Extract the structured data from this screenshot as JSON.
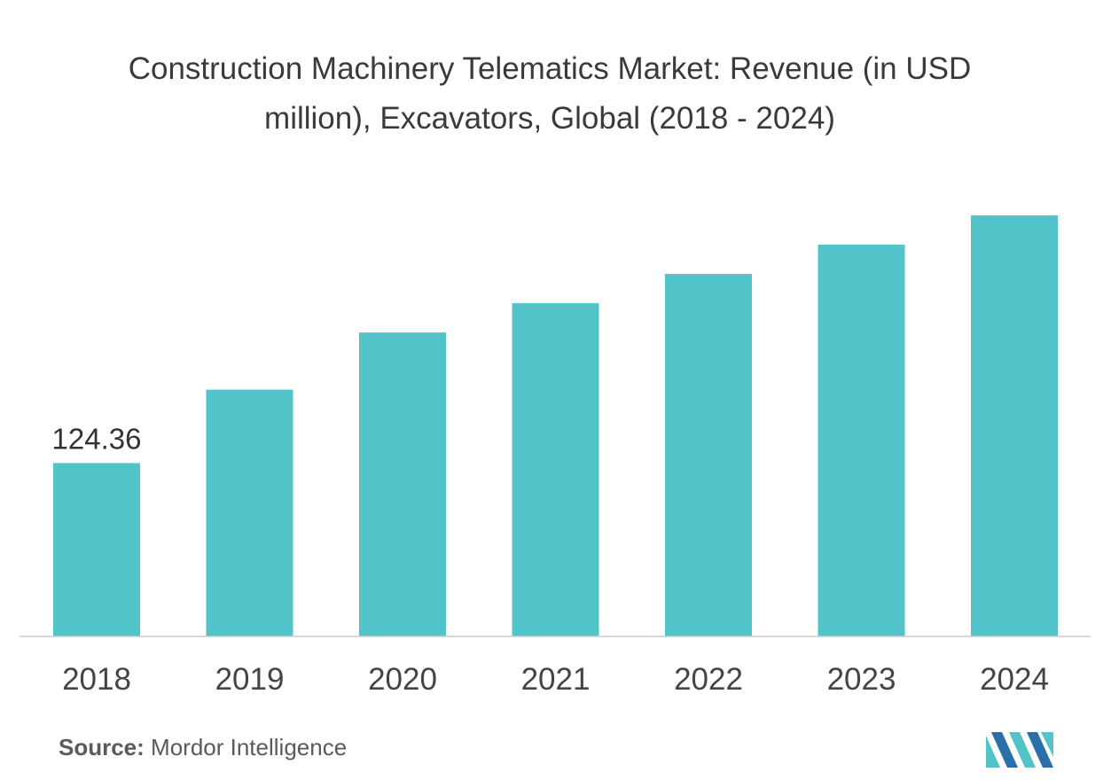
{
  "chart_data": {
    "type": "bar",
    "title": "Construction Machinery Telematics Market: Revenue (in USD million), Excavators, Global (2018 - 2024)",
    "categories": [
      "2018",
      "2019",
      "2020",
      "2021",
      "2022",
      "2023",
      "2024"
    ],
    "values": [
      124.36,
      177,
      218,
      239,
      260,
      281,
      302
    ],
    "data_labels": [
      "124.36",
      "",
      "",
      "",
      "",
      "",
      ""
    ],
    "xlabel": "",
    "ylabel": "",
    "ylim": [
      0,
      302
    ],
    "grid": false,
    "legend": "none",
    "bar_color": "#52c3c9",
    "baseline_color": "#cccccc"
  },
  "source": {
    "label": "Source:",
    "text": "Mordor Intelligence"
  },
  "logo": {
    "icon": "mordor-intelligence-logo",
    "colors": [
      "#52c3c9",
      "#2a6fa8"
    ]
  }
}
